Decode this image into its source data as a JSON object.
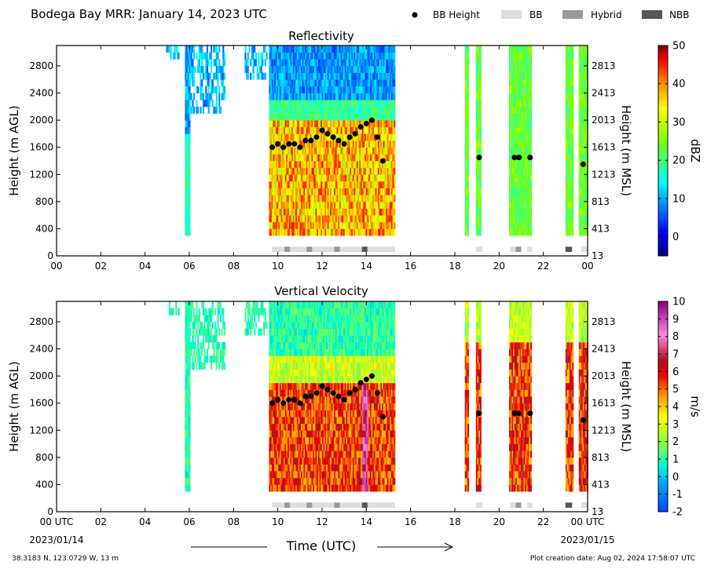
{
  "header": {
    "title": "Bodega Bay MRR:  January 14, 2023 UTC",
    "legend": [
      {
        "label": "BB Height",
        "kind": "dot",
        "color": "#000000"
      },
      {
        "label": "BB",
        "kind": "box",
        "color": "#dddddd"
      },
      {
        "label": "Hybrid",
        "kind": "box",
        "color": "#999999"
      },
      {
        "label": "NBB",
        "kind": "box",
        "color": "#555555"
      }
    ]
  },
  "footer": {
    "location": "38.3183 N, 123.0729 W, 13 m",
    "creation": "Plot creation date: Aug 02, 2024 17:58:07 UTC",
    "xlabel": "Time (UTC)",
    "start_date": "2023/01/14",
    "end_date": "2023/01/15"
  },
  "chart_data": [
    {
      "type": "heatmap",
      "title": "Reflectivity",
      "ylabel": "Height (m AGL)",
      "ylabel_right": "Height (m MSL)",
      "colorbar": {
        "label": "dBZ",
        "range": [
          -5,
          50
        ],
        "ticks": [
          "50",
          "40",
          "30",
          "20",
          "10",
          "0"
        ],
        "tick_values": [
          50,
          40,
          30,
          20,
          10,
          0
        ]
      },
      "xlim": [
        0,
        24
      ],
      "ylim": [
        0,
        3100
      ],
      "xticks": [
        "00",
        "02",
        "04",
        "06",
        "08",
        "10",
        "12",
        "14",
        "16",
        "18",
        "20",
        "22",
        "00"
      ],
      "yticks": [
        "0",
        "400",
        "800",
        "1200",
        "1600",
        "2000",
        "2400",
        "2800"
      ],
      "yticks_right": [
        "13",
        "413",
        "813",
        "1213",
        "1613",
        "2013",
        "2413",
        "2813"
      ],
      "bb_height": {
        "x": [
          9.75,
          10.0,
          10.25,
          10.5,
          10.75,
          11.0,
          11.25,
          11.5,
          11.75,
          12.0,
          12.25,
          12.5,
          12.75,
          13.0,
          13.25,
          13.5,
          13.75,
          14.0,
          14.25,
          14.5,
          14.75,
          19.1,
          20.7,
          20.9,
          21.4,
          23.8
        ],
        "y": [
          1600,
          1650,
          1600,
          1650,
          1650,
          1600,
          1700,
          1700,
          1750,
          1850,
          1800,
          1750,
          1700,
          1650,
          1750,
          1800,
          1900,
          1950,
          2000,
          1750,
          1400,
          1450,
          1450,
          1450,
          1450,
          1350
        ]
      },
      "bb_type_blocks": [
        {
          "start": 9.75,
          "end": 15.3,
          "kind": "BB"
        },
        {
          "start": 10.3,
          "end": 10.55,
          "kind": "Hybrid"
        },
        {
          "start": 11.3,
          "end": 11.55,
          "kind": "Hybrid"
        },
        {
          "start": 12.55,
          "end": 12.8,
          "kind": "Hybrid"
        },
        {
          "start": 13.8,
          "end": 14.05,
          "kind": "NBB"
        },
        {
          "start": 18.95,
          "end": 19.25,
          "kind": "BB"
        },
        {
          "start": 20.5,
          "end": 20.75,
          "kind": "BB"
        },
        {
          "start": 20.75,
          "end": 21.0,
          "kind": "Hybrid"
        },
        {
          "start": 21.25,
          "end": 21.5,
          "kind": "BB"
        },
        {
          "start": 23.0,
          "end": 23.3,
          "kind": "NBB"
        },
        {
          "start": 23.7,
          "end": 24.0,
          "kind": "BB"
        }
      ]
    },
    {
      "type": "heatmap",
      "title": "Vertical Velocity",
      "ylabel": "Height (m AGL)",
      "ylabel_right": "Height (m MSL)",
      "colorbar": {
        "label": "m/s",
        "range": [
          -2,
          10
        ],
        "ticks": [
          "10",
          "9",
          "8",
          "7",
          "6",
          "5",
          "4",
          "3",
          "2",
          "1",
          "0",
          "-1",
          "-2"
        ],
        "tick_values": [
          10,
          9,
          8,
          7,
          6,
          5,
          4,
          3,
          2,
          1,
          0,
          -1,
          -2
        ]
      },
      "xlim": [
        0,
        24
      ],
      "ylim": [
        0,
        3100
      ],
      "xticks": [
        "00 UTC",
        "02",
        "04",
        "06",
        "08",
        "10",
        "12",
        "14",
        "16",
        "18",
        "20",
        "22",
        "00 UTC"
      ],
      "yticks": [
        "0",
        "400",
        "800",
        "1200",
        "1600",
        "2000",
        "2400",
        "2800"
      ],
      "yticks_right": [
        "13",
        "413",
        "813",
        "1213",
        "1613",
        "2013",
        "2413",
        "2813"
      ],
      "bb_height": {
        "x": [
          9.75,
          10.0,
          10.25,
          10.5,
          10.75,
          11.0,
          11.25,
          11.5,
          11.75,
          12.0,
          12.25,
          12.5,
          12.75,
          13.0,
          13.25,
          13.5,
          13.75,
          14.0,
          14.25,
          14.5,
          14.75,
          19.1,
          20.7,
          20.9,
          21.4,
          23.8
        ],
        "y": [
          1600,
          1650,
          1600,
          1650,
          1650,
          1600,
          1700,
          1700,
          1750,
          1850,
          1800,
          1750,
          1700,
          1650,
          1750,
          1800,
          1900,
          1950,
          2000,
          1750,
          1400,
          1450,
          1450,
          1450,
          1450,
          1350
        ]
      },
      "bb_type_blocks": [
        {
          "start": 9.75,
          "end": 15.3,
          "kind": "BB"
        },
        {
          "start": 10.3,
          "end": 10.55,
          "kind": "Hybrid"
        },
        {
          "start": 11.3,
          "end": 11.55,
          "kind": "Hybrid"
        },
        {
          "start": 12.55,
          "end": 12.8,
          "kind": "Hybrid"
        },
        {
          "start": 13.8,
          "end": 14.05,
          "kind": "NBB"
        },
        {
          "start": 18.95,
          "end": 19.25,
          "kind": "BB"
        },
        {
          "start": 20.5,
          "end": 20.75,
          "kind": "BB"
        },
        {
          "start": 20.75,
          "end": 21.0,
          "kind": "Hybrid"
        },
        {
          "start": 21.25,
          "end": 21.5,
          "kind": "BB"
        },
        {
          "start": 23.0,
          "end": 23.3,
          "kind": "NBB"
        },
        {
          "start": 23.7,
          "end": 24.0,
          "kind": "BB"
        }
      ]
    }
  ]
}
